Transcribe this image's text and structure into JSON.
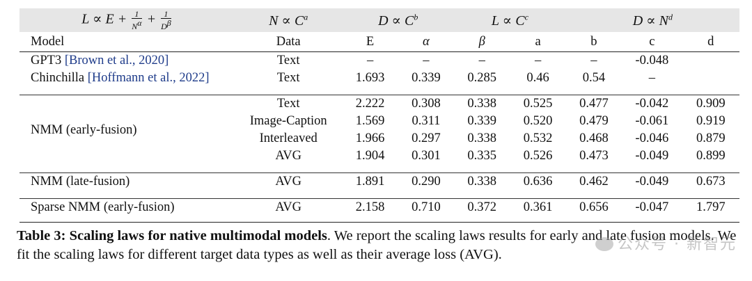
{
  "law_header": {
    "eq_main_left": "L ∝ E + ",
    "frac1_num": "1",
    "frac1_den": "N",
    "frac1_den_exp": "α",
    "plus": " + ",
    "frac2_num": "1",
    "frac2_den": "D",
    "frac2_den_exp": "β",
    "law2_base": "N ∝ C",
    "law2_exp": "a",
    "law3_base": "D ∝ C",
    "law3_exp": "b",
    "law4_base": "L ∝ C",
    "law4_exp": "c",
    "law5_base": "D ∝ N",
    "law5_exp": "d"
  },
  "columns": [
    "Model",
    "Data",
    "E",
    "α",
    "β",
    "a",
    "b",
    "c",
    "d"
  ],
  "rows": {
    "gpt3": {
      "model": "GPT3 ",
      "cite": "[Brown et al., 2020]",
      "data": "Text",
      "vals": [
        "–",
        "–",
        "–",
        "–",
        "–",
        "-0.048",
        ""
      ]
    },
    "chinchilla": {
      "model": "Chinchilla ",
      "cite": "[Hoffmann et al., 2022]",
      "data": "Text",
      "vals": [
        "1.693",
        "0.339",
        "0.285",
        "0.46",
        "0.54",
        "–",
        ""
      ]
    },
    "early": {
      "model": "NMM (early-fusion)",
      "sub": [
        {
          "data": "Text",
          "vals": [
            "2.222",
            "0.308",
            "0.338",
            "0.525",
            "0.477",
            "-0.042",
            "0.909"
          ]
        },
        {
          "data": "Image-Caption",
          "vals": [
            "1.569",
            "0.311",
            "0.339",
            "0.520",
            "0.479",
            "-0.061",
            "0.919"
          ]
        },
        {
          "data": "Interleaved",
          "vals": [
            "1.966",
            "0.297",
            "0.338",
            "0.532",
            "0.468",
            "-0.046",
            "0.879"
          ]
        },
        {
          "data": "AVG",
          "vals": [
            "1.904",
            "0.301",
            "0.335",
            "0.526",
            "0.473",
            "-0.049",
            "0.899"
          ]
        }
      ]
    },
    "late": {
      "model": "NMM (late-fusion)",
      "data": "AVG",
      "vals": [
        "1.891",
        "0.290",
        "0.338",
        "0.636",
        "0.462",
        "-0.049",
        "0.673"
      ]
    },
    "sparse": {
      "model": "Sparse NMM (early-fusion)",
      "data": "AVG",
      "vals": [
        "2.158",
        "0.710",
        "0.372",
        "0.361",
        "0.656",
        "-0.047",
        "1.797"
      ]
    }
  },
  "caption": {
    "bold": "Table 3: Scaling laws for native multimodal models",
    "text": ". We report the scaling laws results for early and late fusion models. We fit the scaling laws for different target data types as well as their average loss (AVG)."
  },
  "watermark": "公众号 · 新智元"
}
